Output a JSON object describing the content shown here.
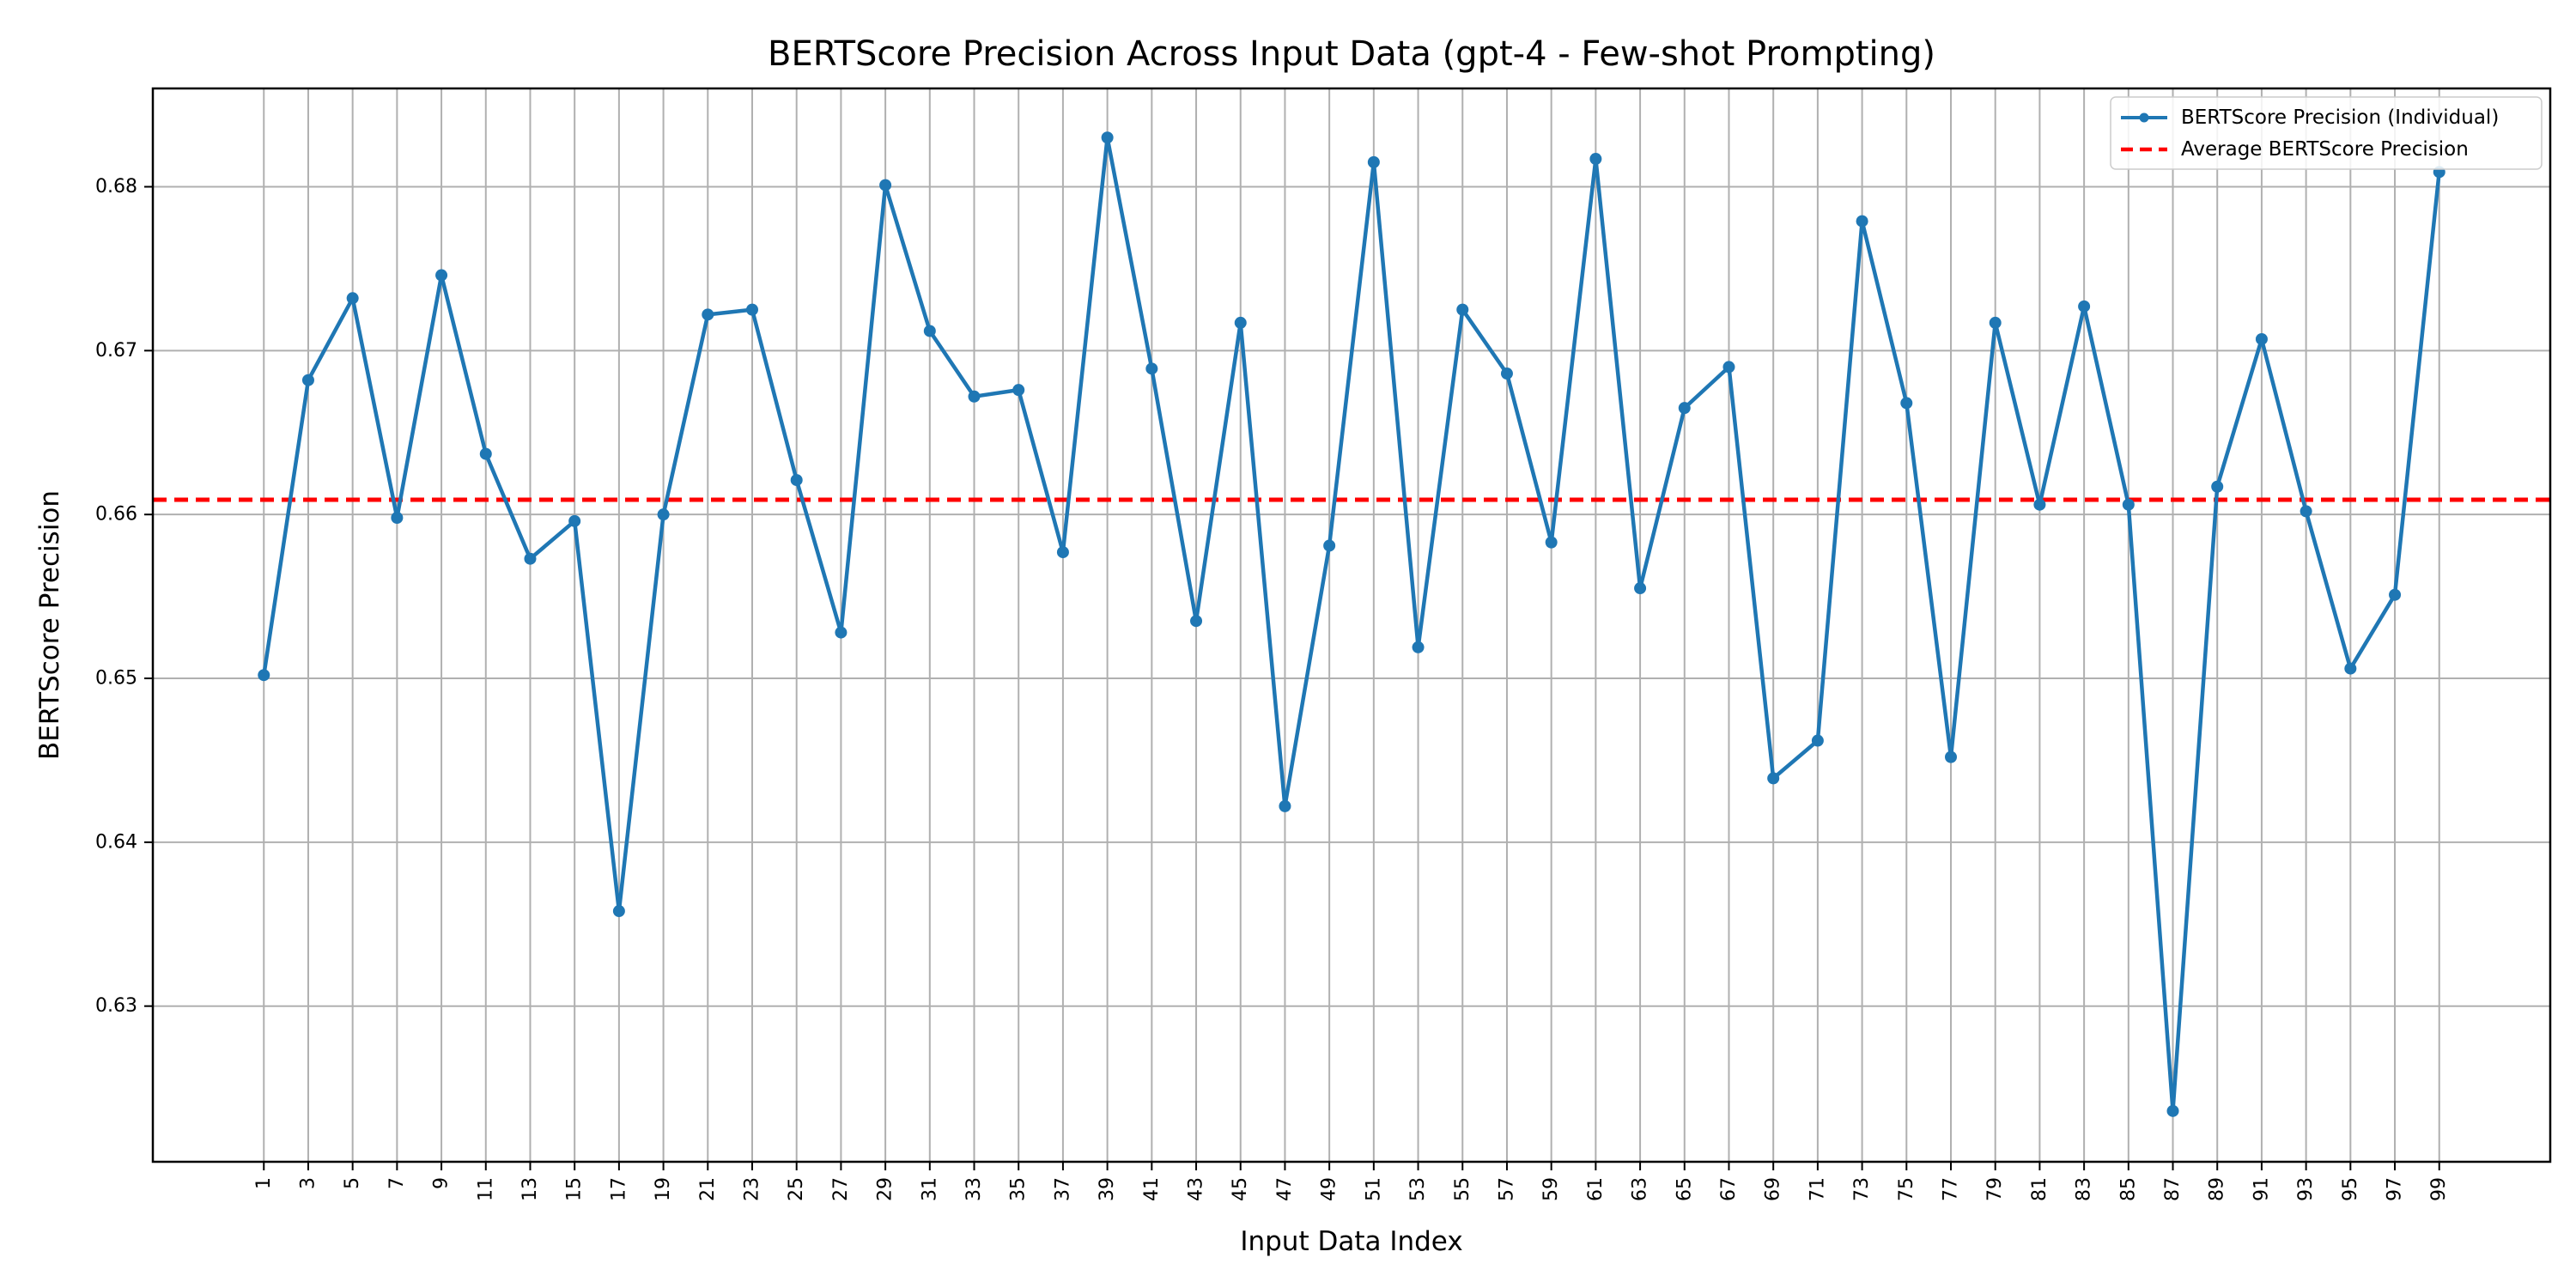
{
  "chart_data": {
    "type": "line",
    "title": "BERTScore Precision Across Input Data (gpt-4 - Few-shot Prompting)",
    "xlabel": "Input Data Index",
    "ylabel": "BERTScore Precision",
    "ylim": [
      0.6205,
      0.686
    ],
    "xlim": [
      -4,
      104
    ],
    "x_ticks": [
      1,
      3,
      5,
      7,
      9,
      11,
      13,
      15,
      17,
      19,
      21,
      23,
      25,
      27,
      29,
      31,
      33,
      35,
      37,
      39,
      41,
      43,
      45,
      47,
      49,
      51,
      53,
      55,
      57,
      59,
      61,
      63,
      65,
      67,
      69,
      71,
      73,
      75,
      77,
      79,
      81,
      83,
      85,
      87,
      89,
      91,
      93,
      95,
      97,
      99
    ],
    "x_tick_labels": [
      "1",
      "3",
      "5",
      "7",
      "9",
      "11",
      "13",
      "15",
      "17",
      "19",
      "21",
      "23",
      "25",
      "27",
      "29",
      "31",
      "33",
      "35",
      "37",
      "39",
      "41",
      "43",
      "45",
      "47",
      "49",
      "51",
      "53",
      "55",
      "57",
      "59",
      "61",
      "63",
      "65",
      "67",
      "69",
      "71",
      "73",
      "75",
      "77",
      "79",
      "81",
      "83",
      "85",
      "87",
      "89",
      "91",
      "93",
      "95",
      "97",
      "99"
    ],
    "y_ticks": [
      0.63,
      0.64,
      0.65,
      0.66,
      0.67,
      0.68
    ],
    "y_tick_labels": [
      "0.63",
      "0.64",
      "0.65",
      "0.66",
      "0.67",
      "0.68"
    ],
    "grid": true,
    "legend_position": "top-right",
    "series": [
      {
        "name": "BERTScore Precision (Individual)",
        "style": "solid-line-with-markers",
        "color": "#1f77b4",
        "x": [
          1,
          3,
          5,
          7,
          9,
          11,
          13,
          15,
          17,
          19,
          21,
          23,
          25,
          27,
          29,
          31,
          33,
          35,
          37,
          39,
          41,
          43,
          45,
          47,
          49,
          51,
          53,
          55,
          57,
          59,
          61,
          63,
          65,
          67,
          69,
          71,
          73,
          75,
          77,
          79,
          81,
          83,
          85,
          87,
          89,
          91,
          93,
          95,
          97,
          99
        ],
        "y": [
          0.6502,
          0.6682,
          0.6732,
          0.6598,
          0.6746,
          0.6637,
          0.6573,
          0.6596,
          0.6358,
          0.66,
          0.6722,
          0.6725,
          0.6621,
          0.6528,
          0.6801,
          0.6712,
          0.6672,
          0.6676,
          0.6577,
          0.683,
          0.6689,
          0.6535,
          0.6717,
          0.6422,
          0.6581,
          0.6815,
          0.6519,
          0.6725,
          0.6686,
          0.6583,
          0.6817,
          0.6555,
          0.6665,
          0.669,
          0.6439,
          0.6462,
          0.6779,
          0.6668,
          0.6452,
          0.6717,
          0.6606,
          0.6727,
          0.6606,
          0.6236,
          0.6617,
          0.6707,
          0.6602,
          0.6506,
          0.6551,
          0.6809
        ]
      },
      {
        "name": "Average BERTScore Precision",
        "style": "dashed-line",
        "color": "#ff0000",
        "value": 0.6609
      }
    ]
  }
}
